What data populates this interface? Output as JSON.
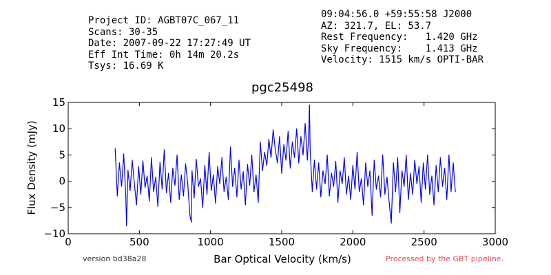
{
  "header": {
    "left_lines": [
      "Project ID: AGBT07C_067_11",
      "Scans: 30-35",
      "Date: 2007-09-22 17:27:49 UT",
      "Eff Int Time: 0h 14m 20.2s",
      "Tsys: 16.69 K"
    ],
    "right_lines": [
      "09:04:56.0 +59:55:58 J2000",
      "AZ: 321.7, EL: 53.7",
      "Rest Frequency:   1.420 GHz",
      "Sky Frequency:    1.413 GHz",
      "Velocity: 1515 km/s OPTI-BAR"
    ]
  },
  "footer": {
    "version": "version bd38a28",
    "pipeline": "Processed by the GBT pipeline."
  },
  "colors": {
    "line": "#0000ff",
    "pipeline_text": "#e8474a"
  },
  "chart_data": {
    "type": "line",
    "title": "pgc25498",
    "xlabel": "Bar Optical Velocity (km/s)",
    "ylabel": "Flux Density (mJy)",
    "xlim": [
      0,
      3000
    ],
    "ylim": [
      -10,
      15
    ],
    "xticks": [
      0,
      500,
      1000,
      1500,
      2000,
      2500,
      3000
    ],
    "yticks": [
      -10,
      -5,
      0,
      5,
      10,
      15
    ],
    "grid": false,
    "series": [
      {
        "x": [
          330,
          345,
          360,
          375,
          390,
          405,
          410,
          420,
          435,
          450,
          465,
          480,
          495,
          510,
          525,
          540,
          555,
          570,
          585,
          600,
          615,
          630,
          645,
          660,
          675,
          690,
          705,
          720,
          735,
          750,
          765,
          780,
          795,
          810,
          825,
          840,
          855,
          865,
          870,
          885,
          900,
          915,
          930,
          945,
          960,
          975,
          990,
          1005,
          1020,
          1035,
          1050,
          1065,
          1080,
          1095,
          1110,
          1125,
          1140,
          1155,
          1170,
          1185,
          1200,
          1215,
          1230,
          1245,
          1260,
          1275,
          1290,
          1305,
          1320,
          1335,
          1350,
          1365,
          1380,
          1395,
          1410,
          1425,
          1440,
          1455,
          1470,
          1485,
          1500,
          1515,
          1530,
          1545,
          1560,
          1575,
          1590,
          1605,
          1620,
          1635,
          1650,
          1665,
          1680,
          1690,
          1695,
          1700,
          1715,
          1730,
          1745,
          1760,
          1775,
          1790,
          1805,
          1820,
          1835,
          1850,
          1865,
          1880,
          1895,
          1910,
          1925,
          1940,
          1955,
          1970,
          1985,
          2000,
          2015,
          2030,
          2045,
          2060,
          2075,
          2090,
          2105,
          2120,
          2135,
          2150,
          2165,
          2180,
          2195,
          2210,
          2225,
          2240,
          2255,
          2270,
          2285,
          2300,
          2315,
          2330,
          2345,
          2360,
          2375,
          2390,
          2405,
          2420,
          2435,
          2450,
          2465,
          2480,
          2495,
          2510,
          2525,
          2540,
          2555,
          2570,
          2585,
          2600,
          2615,
          2630,
          2645,
          2660,
          2675,
          2690,
          2705,
          2720
        ],
        "y": [
          6.2,
          -2.8,
          3.5,
          -1.0,
          5.2,
          -3.0,
          -8.5,
          2.1,
          -1.8,
          4.0,
          -0.5,
          -4.5,
          2.8,
          -2.5,
          3.9,
          -1.2,
          1.0,
          -3.8,
          4.5,
          -2.0,
          0.8,
          -4.8,
          3.6,
          -1.5,
          6.0,
          -2.2,
          1.5,
          -4.0,
          2.5,
          -0.8,
          5.0,
          -3.5,
          1.2,
          -2.8,
          3.3,
          -0.5,
          -6.5,
          -7.8,
          2.0,
          -3.2,
          4.2,
          -1.0,
          0.5,
          -5.0,
          3.0,
          -2.5,
          5.5,
          -1.8,
          1.2,
          -4.2,
          2.8,
          -0.5,
          4.5,
          -2.0,
          0.8,
          -3.5,
          6.5,
          -1.0,
          2.5,
          -3.0,
          4.0,
          -1.5,
          1.8,
          -4.5,
          3.2,
          -0.8,
          5.0,
          -2.0,
          1.2,
          -4.0,
          7.5,
          2.0,
          5.5,
          3.0,
          8.0,
          4.5,
          9.8,
          6.0,
          3.5,
          8.5,
          1.5,
          7.0,
          4.0,
          9.5,
          2.5,
          7.5,
          4.5,
          10.0,
          3.5,
          8.5,
          5.0,
          11.0,
          4.0,
          9.0,
          14.5,
          6.0,
          -2.0,
          4.0,
          -1.5,
          3.5,
          -3.0,
          2.0,
          -0.5,
          5.0,
          -2.8,
          1.5,
          -1.0,
          3.8,
          -4.0,
          2.0,
          -0.5,
          4.5,
          -2.5,
          1.0,
          -3.5,
          3.0,
          -1.5,
          5.5,
          -2.0,
          0.5,
          -4.5,
          3.5,
          -1.0,
          2.0,
          -6.5,
          4.0,
          -1.5,
          1.0,
          -3.0,
          5.0,
          -2.5,
          0.8,
          -4.0,
          -8.0,
          3.5,
          -2.0,
          4.5,
          -6.0,
          2.0,
          -1.0,
          5.0,
          -3.5,
          1.5,
          -2.5,
          4.0,
          -0.5,
          2.8,
          -4.0,
          3.5,
          -1.5,
          5.0,
          -2.5,
          1.0,
          -4.5,
          3.0,
          -2.0,
          4.5,
          -1.0,
          2.5,
          -3.5,
          5.0,
          -2.0,
          3.5,
          -2.0
        ]
      }
    ]
  }
}
